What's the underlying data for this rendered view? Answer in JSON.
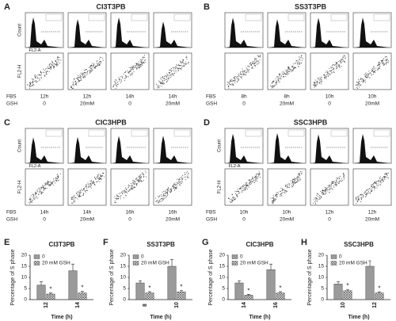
{
  "flow_panels": [
    {
      "letter": "A",
      "title": "CI3T3PB",
      "count_label": "Count",
      "fl2a_label": "FL2-A",
      "fl2h_label": "FL2-H",
      "row_labels": [
        "FBS",
        "GSH"
      ],
      "col_fbs": [
        "12h",
        "12h",
        "14h",
        "14h"
      ],
      "col_gsh": [
        "0",
        "20mM",
        "0",
        "20mM"
      ]
    },
    {
      "letter": "B",
      "title": "SS3T3PB",
      "row_labels": [
        "FBS",
        "GSH"
      ],
      "col_fbs": [
        "8h",
        "8h",
        "10h",
        "10h"
      ],
      "col_gsh": [
        "0",
        "20mM",
        "0",
        "20mM"
      ]
    },
    {
      "letter": "C",
      "title": "CIC3HPB",
      "count_label": "Count",
      "fl2a_label": "FL2-A",
      "fl2h_label": "FL2-H",
      "row_labels": [
        "FBS",
        "GSH"
      ],
      "col_fbs": [
        "14h",
        "14h",
        "16h",
        "16h"
      ],
      "col_gsh": [
        "0",
        "20mM",
        "0",
        "20mM"
      ]
    },
    {
      "letter": "D",
      "title": "SSC3HPB",
      "count_label": "Count",
      "fl2a_label": "FL2-A",
      "fl2h_label": "FL2-H",
      "row_labels": [
        "FBS",
        "GSH"
      ],
      "col_fbs": [
        "10h",
        "10h",
        "12h",
        "12h"
      ],
      "col_gsh": [
        "0",
        "20mM",
        "0",
        "20mM"
      ]
    }
  ],
  "chart_data": [
    {
      "type": "bar",
      "letter": "E",
      "title": "CI3T3PB",
      "y_label": "Percentage of S phase",
      "x_label": "Time (h)",
      "categories": [
        "12",
        "14"
      ],
      "significance": "*",
      "series": [
        {
          "name": "0",
          "color": "#9a9a9a",
          "hatch": false,
          "values": [
            6.5,
            13
          ],
          "errors": [
            1.5,
            3
          ]
        },
        {
          "name": "20 mM GSH",
          "color": "#9a9a9a",
          "hatch": true,
          "values": [
            2.5,
            3
          ],
          "errors": [
            0.5,
            0.7
          ]
        }
      ],
      "ylim": [
        0,
        20
      ],
      "yticks": [
        0,
        5,
        10,
        15,
        20
      ]
    },
    {
      "type": "bar",
      "letter": "F",
      "title": "SS3T3PB",
      "y_label": "Percentage of S phase",
      "x_label": "Time (h)",
      "categories": [
        "8",
        "10"
      ],
      "significance": "*",
      "series": [
        {
          "name": "0",
          "color": "#9a9a9a",
          "hatch": false,
          "values": [
            7.5,
            15
          ],
          "errors": [
            1,
            3
          ]
        },
        {
          "name": "20 mM GSH",
          "color": "#9a9a9a",
          "hatch": true,
          "values": [
            3,
            3.5
          ],
          "errors": [
            0.6,
            0.7
          ]
        }
      ],
      "ylim": [
        0,
        20
      ],
      "yticks": [
        0,
        5,
        10,
        15,
        20
      ]
    },
    {
      "type": "bar",
      "letter": "G",
      "title": "CIC3HPB",
      "y_label": "Percentage of S phase",
      "x_label": "Time (h)",
      "categories": [
        "14",
        "16"
      ],
      "significance": "*",
      "series": [
        {
          "name": "0",
          "color": "#9a9a9a",
          "hatch": false,
          "values": [
            7.5,
            13.5
          ],
          "errors": [
            1,
            2.5
          ]
        },
        {
          "name": "20 mM GSH",
          "color": "#9a9a9a",
          "hatch": true,
          "values": [
            2,
            3
          ],
          "errors": [
            0.4,
            0.6
          ]
        }
      ],
      "ylim": [
        0,
        20
      ],
      "yticks": [
        0,
        5,
        10,
        15,
        20
      ]
    },
    {
      "type": "bar",
      "letter": "H",
      "title": "SSC3HPB",
      "y_label": "Percentage of S phase",
      "x_label": "Time (h)",
      "categories": [
        "10",
        "12"
      ],
      "significance": "*",
      "series": [
        {
          "name": "0",
          "color": "#9a9a9a",
          "hatch": false,
          "values": [
            7,
            15
          ],
          "errors": [
            1,
            2.5
          ]
        },
        {
          "name": "20 mM GSH",
          "color": "#9a9a9a",
          "hatch": true,
          "values": [
            4,
            3
          ],
          "errors": [
            0.6,
            0.5
          ]
        }
      ],
      "ylim": [
        0,
        20
      ],
      "yticks": [
        0,
        5,
        10,
        15,
        20
      ]
    }
  ]
}
